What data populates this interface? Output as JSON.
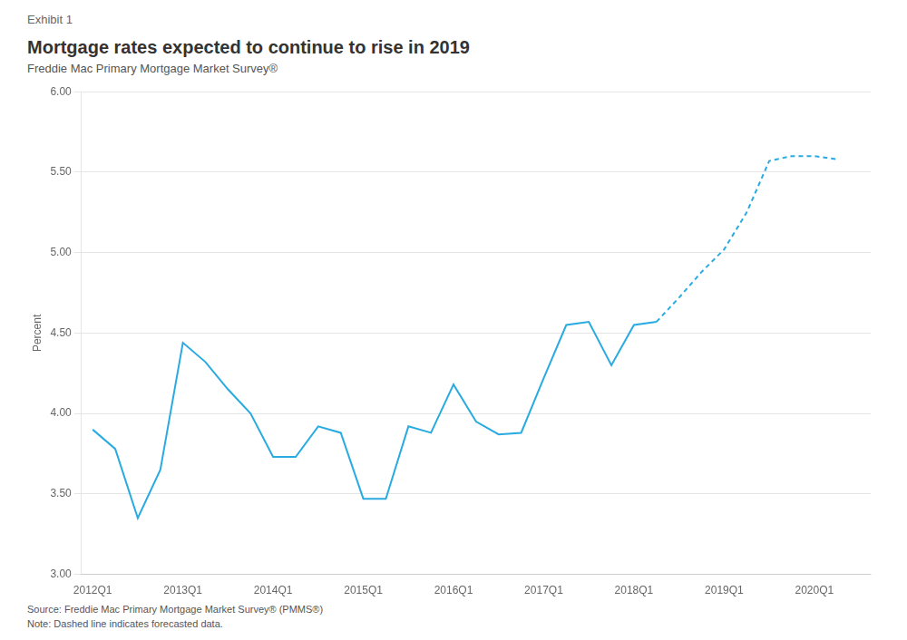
{
  "chart_data": {
    "type": "line",
    "title": "Mortgage rates expected to continue to rise in 2019",
    "subtitle": "Freddie Mac Primary Mortgage Market Survey®",
    "exhibit_label": "Exhibit 1",
    "source": "Source: Freddie Mac Primary Mortgage Market Survey® (PMMS®)",
    "note": "Note: Dashed line indicates forecasted data.",
    "y_label": "Percent",
    "series": [
      {
        "color": "#29ABE2",
        "line_style": "solid",
        "x": [
          0,
          1,
          2,
          3,
          4,
          5,
          6,
          7,
          8,
          9,
          10,
          11,
          12,
          13,
          14,
          15,
          16,
          17,
          18,
          19,
          20,
          21,
          22,
          23,
          24,
          25
        ],
        "values": [
          3.9,
          3.78,
          3.35,
          3.65,
          4.44,
          4.32,
          4.15,
          4.0,
          3.73,
          3.73,
          3.92,
          3.88,
          3.47,
          3.47,
          3.92,
          3.88,
          4.18,
          3.95,
          3.87,
          3.88,
          4.22,
          4.55,
          4.57,
          4.3,
          4.55,
          4.57
        ]
      },
      {
        "color": "#29ABE2",
        "line_style": "dashed",
        "x": [
          25,
          26,
          27,
          28,
          29,
          30,
          31,
          32,
          33
        ],
        "values": [
          4.57,
          4.72,
          4.88,
          5.02,
          5.25,
          5.57,
          5.6,
          5.6,
          5.58
        ]
      }
    ],
    "xlim": [
      -0.5,
      34.5
    ],
    "xticks": [
      {
        "value": 0,
        "label": "2012Q1"
      },
      {
        "value": 4,
        "label": "2013Q1"
      },
      {
        "value": 8,
        "label": "2014Q1"
      },
      {
        "value": 12,
        "label": "2015Q1"
      },
      {
        "value": 16,
        "label": "2016Q1"
      },
      {
        "value": 20,
        "label": "2017Q1"
      },
      {
        "value": 24,
        "label": "2018Q1"
      },
      {
        "value": 28,
        "label": "2019Q1"
      },
      {
        "value": 32,
        "label": "2020Q1"
      }
    ],
    "ylim": [
      3.0,
      6.0
    ],
    "yticks": [
      {
        "value": 3.0,
        "label": "3.00"
      },
      {
        "value": 3.5,
        "label": "3.50"
      },
      {
        "value": 4.0,
        "label": "4.00"
      },
      {
        "value": 4.5,
        "label": "4.50"
      },
      {
        "value": 5.0,
        "label": "5.00"
      },
      {
        "value": 5.5,
        "label": "5.50"
      },
      {
        "value": 6.0,
        "label": "6.00"
      }
    ],
    "grid": "y"
  }
}
